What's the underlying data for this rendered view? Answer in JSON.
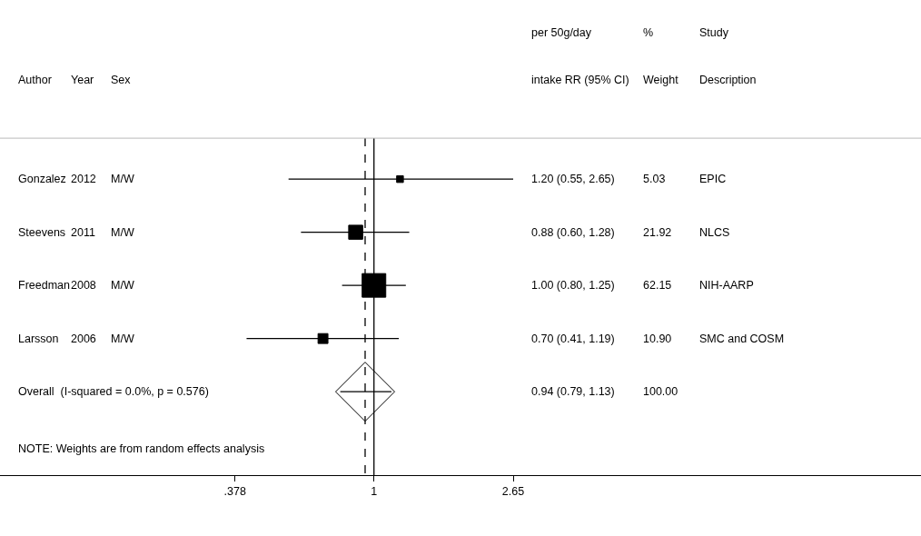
{
  "chart_data": {
    "type": "scatter",
    "orientation": "horizontal",
    "categories": [
      "Gonzalez",
      "Steevens",
      "Freedman",
      "Larsson",
      "Overall  (I-squared = 0.0%, p = 0.576)"
    ],
    "series": [
      {
        "color": "#000000",
        "marker": "square",
        "values": [
          1.2,
          0.88,
          1.0,
          0.7,
          null
        ],
        "errors": [
          [
            0.55,
            2.65
          ],
          [
            0.6,
            1.28
          ],
          [
            0.8,
            1.25
          ],
          [
            0.41,
            1.19
          ],
          null
        ],
        "sizes": [
          0.081,
          0.353,
          1,
          0.175,
          null
        ]
      },
      {
        "color": "#000000",
        "marker": "diamond",
        "values": [
          null,
          null,
          null,
          null,
          0.94
        ],
        "errors": [
          null,
          null,
          null,
          null,
          [
            0.79,
            1.13
          ]
        ]
      }
    ],
    "log": "x",
    "xlim": [
      0.073,
      46
    ],
    "xticks": [
      {
        "value": 0.378,
        "label": ".378"
      },
      1,
      2.65
    ],
    "tick_labels": "x",
    "ref_lines": [
      {
        "axis": "x",
        "value": 1,
        "line_style": "solid",
        "color": "#000000"
      },
      {
        "axis": "x",
        "value": 0.94,
        "line_style": "dashed",
        "color": "#000000"
      }
    ],
    "annotations": [
      "per 50g/day",
      "%",
      "Study",
      "Author",
      "Year",
      "Sex",
      "intake RR (95% CI)",
      "Weight",
      "Description",
      "NOTE: Weights are from random effects analysis",
      "2012",
      "M/W",
      "1.20 (0.55, 2.65)",
      "5.03",
      "EPIC",
      "2011",
      "M/W",
      "0.88 (0.60, 1.28)",
      "21.92",
      "NLCS",
      "2008",
      "M/W",
      "1.00 (0.80, 1.25)",
      "62.15",
      "NIH-AARP",
      "2006",
      "M/W",
      "0.70 (0.41, 1.19)",
      "10.90",
      "SMC and COSM",
      "0.94 (0.79, 1.13)",
      "100.00"
    ]
  }
}
